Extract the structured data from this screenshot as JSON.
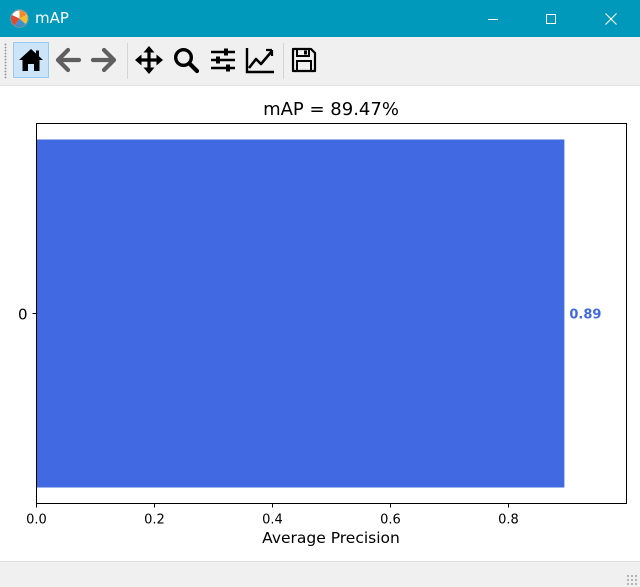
{
  "window": {
    "title": "mAP",
    "title_bar_color": "#0099bc"
  },
  "toolbar": {
    "buttons": [
      {
        "name": "home",
        "icon": "home-icon"
      },
      {
        "name": "back",
        "icon": "arrow-left-icon"
      },
      {
        "name": "forward",
        "icon": "arrow-right-icon"
      },
      {
        "name": "pan",
        "icon": "move-icon"
      },
      {
        "name": "zoom",
        "icon": "magnifier-icon"
      },
      {
        "name": "subplots",
        "icon": "sliders-icon"
      },
      {
        "name": "edit-axes",
        "icon": "line-chart-icon"
      },
      {
        "name": "save",
        "icon": "floppy-disk-icon"
      }
    ]
  },
  "chart_data": {
    "type": "bar",
    "orientation": "horizontal",
    "title": "mAP = 89.47%",
    "xlabel": "Average Precision",
    "ylabel": "",
    "categories": [
      "0"
    ],
    "values": [
      0.8947
    ],
    "data_labels": [
      "0.89"
    ],
    "xlim": [
      0,
      1
    ],
    "x_ticks": [
      0.0,
      0.2,
      0.4,
      0.6,
      0.8
    ],
    "x_tick_labels": [
      "0.0",
      "0.2",
      "0.4",
      "0.6",
      "0.8"
    ],
    "grid": false,
    "bar_color": "#4169e1",
    "label_color": "#4169e1"
  }
}
